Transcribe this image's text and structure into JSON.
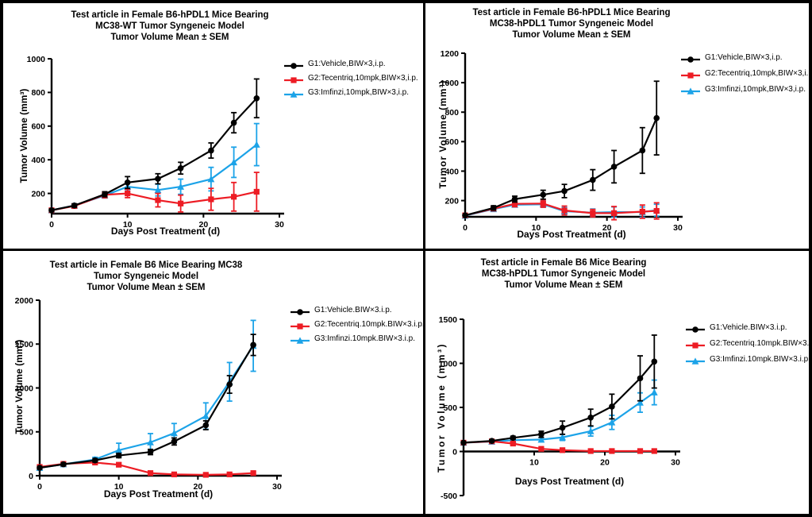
{
  "figure": {
    "background_color": "#ffffff",
    "border_color": "#000000",
    "series_colors": {
      "g1": "#000000",
      "g2": "#ed1c24",
      "g3": "#1ca3e8"
    }
  },
  "chart_data": [
    {
      "type": "line",
      "title_lines": [
        "Test article in Female B6-hPDL1 Mice Bearing",
        "MC38-WT Tumor Syngeneic Model",
        "Tumor Volume Mean ± SEM"
      ],
      "xlabel": "Days Post Treatment (d)",
      "ylabel": "Tumor Volume (mm³)",
      "x": [
        0,
        3,
        7,
        10,
        14,
        17,
        21,
        24,
        27
      ],
      "xlim": [
        0,
        30
      ],
      "xticks": [
        0,
        10,
        20,
        30
      ],
      "ylim": [
        80,
        1000
      ],
      "yticks": [
        200,
        400,
        600,
        800,
        1000
      ],
      "grid": false,
      "legend_position": "right",
      "series": [
        {
          "name": "G1:Vehicle,BIW×3,i.p.",
          "color": "#000000",
          "marker": "circle",
          "values": [
            100,
            128,
            195,
            265,
            287,
            350,
            455,
            620,
            765
          ],
          "sem": [
            8,
            10,
            15,
            35,
            30,
            35,
            45,
            60,
            115
          ]
        },
        {
          "name": "G2:Tecentriq,10mpk,BIW×3,i.p.",
          "color": "#ed1c24",
          "marker": "square",
          "values": [
            100,
            125,
            192,
            200,
            160,
            140,
            165,
            180,
            210
          ],
          "sem": [
            8,
            10,
            18,
            25,
            40,
            50,
            65,
            85,
            115
          ]
        },
        {
          "name": "G3:Imfinzi,10mpk,BIW×3,i.p.",
          "color": "#1ca3e8",
          "marker": "triangle",
          "values": [
            100,
            128,
            188,
            240,
            220,
            240,
            285,
            385,
            490
          ],
          "sem": [
            8,
            10,
            15,
            25,
            35,
            45,
            70,
            90,
            125
          ]
        }
      ]
    },
    {
      "type": "line",
      "title_lines": [
        "Test article in Female B6-hPDL1 Mice Bearing",
        "MC38-hPDL1 Tumor Syngeneic Model",
        "Tumor Volume Mean ± SEM"
      ],
      "xlabel": "Days Post Treatment (d)",
      "ylabel": "Tumor Volume (mm³)",
      "x": [
        0,
        4,
        7,
        11,
        14,
        18,
        21,
        25,
        27
      ],
      "xlim": [
        0,
        30
      ],
      "xticks": [
        0,
        10,
        20,
        30
      ],
      "ylim": [
        90,
        1200
      ],
      "yticks": [
        200,
        400,
        600,
        800,
        1000,
        1200
      ],
      "grid": false,
      "legend_position": "right",
      "series": [
        {
          "name": "G1:Vehicle,BIW×3,i.p.",
          "color": "#000000",
          "marker": "circle",
          "values": [
            100,
            150,
            210,
            240,
            265,
            340,
            430,
            540,
            760
          ],
          "sem": [
            5,
            15,
            20,
            30,
            45,
            70,
            110,
            155,
            250
          ]
        },
        {
          "name": "G2:Tecentriq,10mpk,BIW×3,i.p.",
          "color": "#ed1c24",
          "marker": "square",
          "values": [
            100,
            145,
            178,
            180,
            133,
            115,
            115,
            125,
            130
          ],
          "sem": [
            5,
            10,
            20,
            25,
            30,
            25,
            45,
            45,
            55
          ]
        },
        {
          "name": "G3:Imfinzi,10mpk,BIW×3,i.p.",
          "color": "#1ca3e8",
          "marker": "triangle",
          "values": [
            98,
            142,
            172,
            175,
            128,
            118,
            122,
            122,
            135
          ],
          "sem": [
            5,
            10,
            15,
            20,
            25,
            25,
            35,
            35,
            40
          ]
        }
      ]
    },
    {
      "type": "line",
      "title_lines": [
        "Test article in Female B6 Mice Bearing MC38",
        "Tumor Syngeneic Model",
        "Tumor Volume Mean ± SEM"
      ],
      "xlabel": "Days Post Treatment (d)",
      "ylabel": "Tumor Volume (mm³)",
      "x": [
        0,
        3,
        7,
        10,
        14,
        17,
        21,
        24,
        27
      ],
      "xlim": [
        0,
        30
      ],
      "xticks": [
        0,
        10,
        20,
        30
      ],
      "ylim": [
        0,
        2000
      ],
      "yticks": [
        0,
        500,
        1000,
        1500,
        2000
      ],
      "grid": false,
      "legend_position": "right",
      "series": [
        {
          "name": "G1:Vehicle.BIW×3.i.p.",
          "color": "#000000",
          "marker": "circle",
          "values": [
            90,
            130,
            175,
            230,
            270,
            390,
            575,
            1040,
            1490
          ],
          "sem": [
            15,
            15,
            20,
            25,
            30,
            40,
            50,
            100,
            120
          ]
        },
        {
          "name": "G2:Tecentriq.10mpk.BIW×3.i.p.",
          "color": "#ed1c24",
          "marker": "square",
          "values": [
            100,
            135,
            150,
            125,
            30,
            15,
            10,
            15,
            30
          ],
          "sem": [
            10,
            10,
            15,
            20,
            10,
            8,
            6,
            10,
            15
          ]
        },
        {
          "name": "G3:Imfinzi.10mpk.BIW×3.i.p.",
          "color": "#1ca3e8",
          "marker": "triangle",
          "values": [
            90,
            130,
            185,
            290,
            380,
            485,
            680,
            1070,
            1480
          ],
          "sem": [
            15,
            15,
            25,
            80,
            100,
            110,
            150,
            220,
            290
          ]
        }
      ]
    },
    {
      "type": "line",
      "title_lines": [
        "Test article in Female B6 Mice Bearing",
        "MC38-hPDL1 Tumor Syngeneic Model",
        "Tumor Volume Mean ± SEM"
      ],
      "xlabel": "Days Post Treatment (d)",
      "ylabel": "Tumor Volume (mm³)",
      "x": [
        0,
        4,
        7,
        11,
        14,
        18,
        21,
        25,
        27
      ],
      "xlim": [
        0,
        30
      ],
      "xticks": [
        10,
        20,
        30
      ],
      "ylim": [
        -500,
        1500
      ],
      "yticks": [
        -500,
        0,
        500,
        1000,
        1500
      ],
      "x_axis_at": 0,
      "grid": false,
      "legend_position": "right",
      "series": [
        {
          "name": "G1:Vehicle.BIW×3.i.p.",
          "color": "#000000",
          "marker": "circle",
          "values": [
            100,
            120,
            155,
            195,
            270,
            385,
            510,
            830,
            1020
          ],
          "sem": [
            10,
            12,
            18,
            35,
            75,
            95,
            140,
            255,
            300
          ]
        },
        {
          "name": "G2:Tecentriq.10mpk.BIW×3.i.p.",
          "color": "#ed1c24",
          "marker": "square",
          "values": [
            100,
            115,
            90,
            30,
            15,
            5,
            5,
            5,
            5
          ],
          "sem": [
            8,
            10,
            15,
            15,
            10,
            5,
            5,
            5,
            5
          ]
        },
        {
          "name": "G3:Imfinzi.10mpk.BIW×3.i.p.",
          "color": "#1ca3e8",
          "marker": "triangle",
          "values": [
            100,
            112,
            128,
            135,
            160,
            230,
            330,
            555,
            670
          ],
          "sem": [
            8,
            10,
            15,
            25,
            35,
            55,
            80,
            110,
            140
          ]
        }
      ]
    }
  ]
}
